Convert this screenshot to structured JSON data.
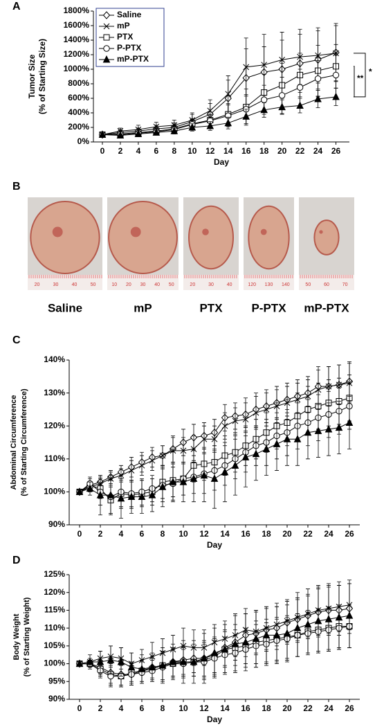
{
  "chart_data": [
    {
      "type": "line",
      "panel": "A",
      "x_label": "Day",
      "y_label": [
        "Tumor Size",
        "(% of Starting Size)"
      ],
      "x": [
        0,
        2,
        4,
        6,
        8,
        10,
        12,
        14,
        16,
        18,
        20,
        22,
        24,
        26
      ],
      "xlim": [
        -1,
        27.5
      ],
      "xticks": [
        0,
        2,
        4,
        6,
        8,
        10,
        12,
        14,
        16,
        18,
        20,
        22,
        24,
        26
      ],
      "ylim": [
        0,
        1800
      ],
      "yticks": [
        {
          "value": 0,
          "label": "0%"
        },
        {
          "value": 200,
          "label": "200%"
        },
        {
          "value": 400,
          "label": "400%"
        },
        {
          "value": 600,
          "label": "600%"
        },
        {
          "value": 800,
          "label": "800%"
        },
        {
          "value": 1000,
          "label": "1000%"
        },
        {
          "value": 1200,
          "label": "1200%"
        },
        {
          "value": 1400,
          "label": "1400%"
        },
        {
          "value": 1600,
          "label": "1600%"
        },
        {
          "value": 1800,
          "label": "1800%"
        }
      ],
      "legend": "top-left",
      "annotations": [
        "*",
        "**"
      ],
      "series": [
        {
          "name": "Saline",
          "marker": "diamond",
          "color": "#000000",
          "values": [
            100,
            130,
            150,
            180,
            200,
            280,
            380,
            600,
            880,
            960,
            1000,
            1080,
            1130,
            1230
          ],
          "errors": [
            20,
            30,
            40,
            50,
            60,
            100,
            150,
            250,
            400,
            350,
            400,
            400,
            400,
            400
          ]
        },
        {
          "name": "mP",
          "marker": "x",
          "color": "#000000",
          "values": [
            100,
            150,
            170,
            210,
            230,
            300,
            430,
            660,
            1030,
            1060,
            1130,
            1170,
            1190,
            1220
          ],
          "errors": [
            20,
            40,
            60,
            60,
            70,
            100,
            150,
            250,
            400,
            420,
            380,
            380,
            380,
            380
          ]
        },
        {
          "name": "PTX",
          "marker": "square",
          "color": "#000000",
          "values": [
            100,
            110,
            130,
            150,
            180,
            250,
            300,
            380,
            480,
            680,
            780,
            920,
            980,
            1040
          ],
          "errors": [
            20,
            30,
            40,
            40,
            50,
            60,
            80,
            150,
            250,
            250,
            300,
            300,
            350,
            300
          ]
        },
        {
          "name": "P-PTX",
          "marker": "circle",
          "color": "#000000",
          "values": [
            100,
            100,
            120,
            140,
            170,
            240,
            290,
            360,
            450,
            580,
            640,
            750,
            870,
            920
          ],
          "errors": [
            20,
            30,
            30,
            40,
            40,
            60,
            80,
            150,
            200,
            200,
            250,
            250,
            250,
            300
          ]
        },
        {
          "name": "mP-PTX",
          "marker": "triangle",
          "color": "#000000",
          "values": [
            100,
            90,
            110,
            130,
            150,
            200,
            220,
            260,
            350,
            440,
            480,
            500,
            590,
            620
          ],
          "errors": [
            20,
            20,
            30,
            30,
            40,
            50,
            60,
            80,
            100,
            100,
            100,
            100,
            120,
            120
          ]
        }
      ]
    },
    {
      "type": "line",
      "panel": "C",
      "x_label": "Day",
      "y_label": [
        "Abdominal Circumference",
        "(% of Starting Circumference)"
      ],
      "x": [
        0,
        1,
        2,
        3,
        4,
        5,
        6,
        7,
        8,
        9,
        10,
        11,
        12,
        13,
        14,
        15,
        16,
        17,
        18,
        19,
        20,
        21,
        22,
        23,
        24,
        25,
        26
      ],
      "xlim": [
        -1,
        27
      ],
      "xticks": [
        0,
        2,
        4,
        6,
        8,
        10,
        12,
        14,
        16,
        18,
        20,
        22,
        24,
        26
      ],
      "ylim": [
        90,
        140
      ],
      "yticks": [
        {
          "value": 90,
          "label": "90%"
        },
        {
          "value": 100,
          "label": "100%"
        },
        {
          "value": 110,
          "label": "110%"
        },
        {
          "value": 120,
          "label": "120%"
        },
        {
          "value": 130,
          "label": "130%"
        },
        {
          "value": 140,
          "label": "140%"
        }
      ],
      "series": [
        {
          "marker": "diamond",
          "color": "#000000",
          "values": [
            100,
            102,
            103,
            104.5,
            106,
            107.5,
            109,
            110.5,
            111,
            113,
            115,
            116.5,
            117,
            118,
            122.5,
            123,
            123.5,
            125,
            126,
            127,
            128,
            129,
            130,
            132,
            132,
            132.5,
            133.5
          ],
          "errors": [
            0.5,
            1,
            2,
            2,
            2,
            3,
            3,
            3,
            3,
            4,
            4,
            4,
            4,
            4,
            4,
            4,
            5,
            5,
            5,
            5,
            5,
            5,
            5,
            6,
            6,
            6,
            6
          ]
        },
        {
          "marker": "x",
          "color": "#000000",
          "values": [
            100,
            101.5,
            102.5,
            104,
            105,
            106.5,
            108,
            109.5,
            111,
            112.5,
            112.5,
            113,
            116,
            116,
            120,
            121.5,
            122,
            124,
            125,
            126,
            127,
            128,
            129,
            131,
            132,
            132.5,
            133
          ],
          "errors": [
            0.5,
            1,
            2,
            2,
            2,
            3,
            3,
            3,
            3,
            4,
            4,
            4,
            4,
            4,
            4,
            4,
            5,
            5,
            5,
            5,
            5,
            5,
            5,
            6,
            6,
            6,
            6
          ]
        },
        {
          "marker": "square",
          "color": "#000000",
          "values": [
            100,
            102,
            101,
            97.5,
            99.5,
            99,
            99.5,
            100,
            103,
            103.5,
            104,
            108,
            108.5,
            109,
            111,
            112,
            114,
            116,
            118,
            120,
            121,
            123,
            125,
            126,
            127,
            127.5,
            128.5
          ],
          "errors": [
            0.5,
            2,
            3,
            4,
            4,
            4,
            4,
            4,
            5,
            5,
            5,
            5,
            5,
            5,
            6,
            6,
            6,
            6,
            6,
            7,
            7,
            7,
            7,
            7,
            7,
            7,
            7
          ]
        },
        {
          "marker": "circle",
          "color": "#000000",
          "values": [
            100,
            102.5,
            100,
            98.5,
            100,
            99.5,
            100,
            101,
            102,
            102.5,
            104,
            104.5,
            105.5,
            106.5,
            108,
            110,
            112,
            114,
            115,
            117,
            118,
            120,
            121,
            122.5,
            123.5,
            124.5,
            126
          ],
          "errors": [
            0.5,
            2,
            4,
            5,
            5,
            4,
            4,
            4,
            5,
            5,
            5,
            5,
            6,
            6,
            6,
            6,
            6,
            6,
            7,
            7,
            7,
            7,
            7,
            7,
            7,
            7,
            7
          ]
        },
        {
          "marker": "triangle",
          "color": "#000000",
          "values": [
            100,
            101,
            99,
            99,
            98,
            98.5,
            98.5,
            99,
            101.5,
            103,
            103,
            104,
            105,
            104,
            106,
            108,
            110.5,
            111.5,
            113,
            114.5,
            116,
            116,
            118,
            118.5,
            119,
            119.5,
            121
          ],
          "errors": [
            0.5,
            2,
            6,
            6,
            6,
            5,
            5,
            5,
            6,
            6,
            6,
            7,
            8,
            9,
            9,
            9,
            9,
            8,
            8,
            8,
            8,
            8,
            8,
            8,
            8,
            8,
            8
          ]
        }
      ]
    },
    {
      "type": "line",
      "panel": "D",
      "x_label": "Day",
      "y_label": [
        "Body Weight",
        "(% of Starting Weight)"
      ],
      "x": [
        0,
        1,
        2,
        3,
        4,
        5,
        6,
        7,
        8,
        9,
        10,
        11,
        12,
        13,
        14,
        15,
        16,
        17,
        18,
        19,
        20,
        21,
        22,
        23,
        24,
        25,
        26
      ],
      "xlim": [
        -1,
        27
      ],
      "xticks": [
        0,
        2,
        4,
        6,
        8,
        10,
        12,
        14,
        16,
        18,
        20,
        22,
        24,
        26
      ],
      "ylim": [
        90,
        125
      ],
      "yticks": [
        {
          "value": 90,
          "label": "90%"
        },
        {
          "value": 95,
          "label": "95%"
        },
        {
          "value": 100,
          "label": "100%"
        },
        {
          "value": 105,
          "label": "105%"
        },
        {
          "value": 110,
          "label": "110%"
        },
        {
          "value": 115,
          "label": "115%"
        },
        {
          "value": 120,
          "label": "120%"
        },
        {
          "value": 125,
          "label": "125%"
        }
      ],
      "series": [
        {
          "marker": "diamond",
          "color": "#000000",
          "values": [
            100,
            100,
            99,
            97.5,
            97,
            97,
            98,
            99,
            99.5,
            100.5,
            101,
            101.5,
            101.5,
            102.5,
            104.5,
            106,
            108,
            108.5,
            109.5,
            110,
            111.5,
            112.5,
            113.5,
            114.5,
            115,
            115,
            115.5
          ],
          "errors": [
            0.5,
            1,
            2,
            3,
            3,
            3,
            3,
            3,
            4,
            4,
            4,
            4,
            5,
            5,
            5,
            5,
            6,
            6,
            6,
            6,
            6,
            6,
            6,
            7,
            7,
            7,
            7
          ]
        },
        {
          "marker": "x",
          "color": "#000000",
          "values": [
            100,
            100.5,
            101.5,
            102,
            101.5,
            100,
            101,
            102,
            103,
            104,
            105,
            104.5,
            104.5,
            106,
            107,
            108,
            109.5,
            109,
            110,
            111,
            112,
            113,
            114,
            115,
            115.5,
            116,
            116.5
          ],
          "errors": [
            0.5,
            1,
            2,
            3,
            3,
            3,
            3,
            4,
            4,
            4,
            5,
            5,
            5,
            5,
            5,
            6,
            6,
            6,
            6,
            6,
            6,
            7,
            7,
            7,
            7,
            7,
            7
          ]
        },
        {
          "marker": "square",
          "color": "#000000",
          "values": [
            100,
            100,
            98.5,
            97,
            96.5,
            97.5,
            98,
            98.5,
            99.5,
            100,
            100.5,
            100.5,
            101,
            102,
            104,
            104.5,
            105,
            106,
            106.5,
            107,
            107.5,
            108,
            109,
            109.5,
            110,
            110.5,
            110.5
          ],
          "errors": [
            0.5,
            1,
            2,
            3,
            3,
            3,
            3,
            3,
            4,
            4,
            4,
            4,
            5,
            5,
            5,
            5,
            5,
            6,
            6,
            6,
            6,
            6,
            6,
            6,
            6,
            6,
            6
          ]
        },
        {
          "marker": "circle",
          "color": "#000000",
          "values": [
            100,
            100,
            98,
            96.5,
            96.5,
            97,
            97.5,
            98,
            99,
            100,
            100,
            100.5,
            100.5,
            101.5,
            102.5,
            103,
            104,
            105,
            105.5,
            106.5,
            107,
            108,
            108.5,
            109,
            109.5,
            110,
            110.5
          ],
          "errors": [
            0.5,
            1,
            2,
            3,
            3,
            3,
            3,
            3,
            4,
            4,
            4,
            4,
            5,
            5,
            5,
            5,
            5,
            6,
            6,
            6,
            6,
            6,
            6,
            6,
            6,
            6,
            6
          ]
        },
        {
          "marker": "triangle",
          "color": "#000000",
          "values": [
            100,
            100.5,
            100.5,
            101,
            100.5,
            99,
            98.5,
            99,
            99.5,
            100.5,
            100.5,
            100.5,
            101.5,
            103,
            104,
            105.5,
            106,
            107,
            108,
            108,
            108.5,
            110,
            111,
            112,
            112.5,
            113,
            113.5
          ],
          "errors": [
            0.5,
            2,
            3,
            4,
            4,
            4,
            4,
            4,
            5,
            5,
            6,
            6,
            7,
            7,
            7,
            8,
            8,
            8,
            8,
            8,
            8,
            8,
            8,
            9,
            9,
            9,
            9
          ]
        }
      ]
    }
  ],
  "photo_panel": {
    "panel": "B",
    "captions": [
      "Saline",
      "mP",
      "PTX",
      "P-PTX",
      "mP-PTX"
    ],
    "ruler_labels": [
      [
        20,
        30,
        40,
        50
      ],
      [
        10,
        20,
        30,
        40,
        50
      ],
      [
        20,
        30,
        40
      ],
      [
        120,
        130,
        140
      ],
      [
        50,
        60,
        70
      ]
    ]
  }
}
